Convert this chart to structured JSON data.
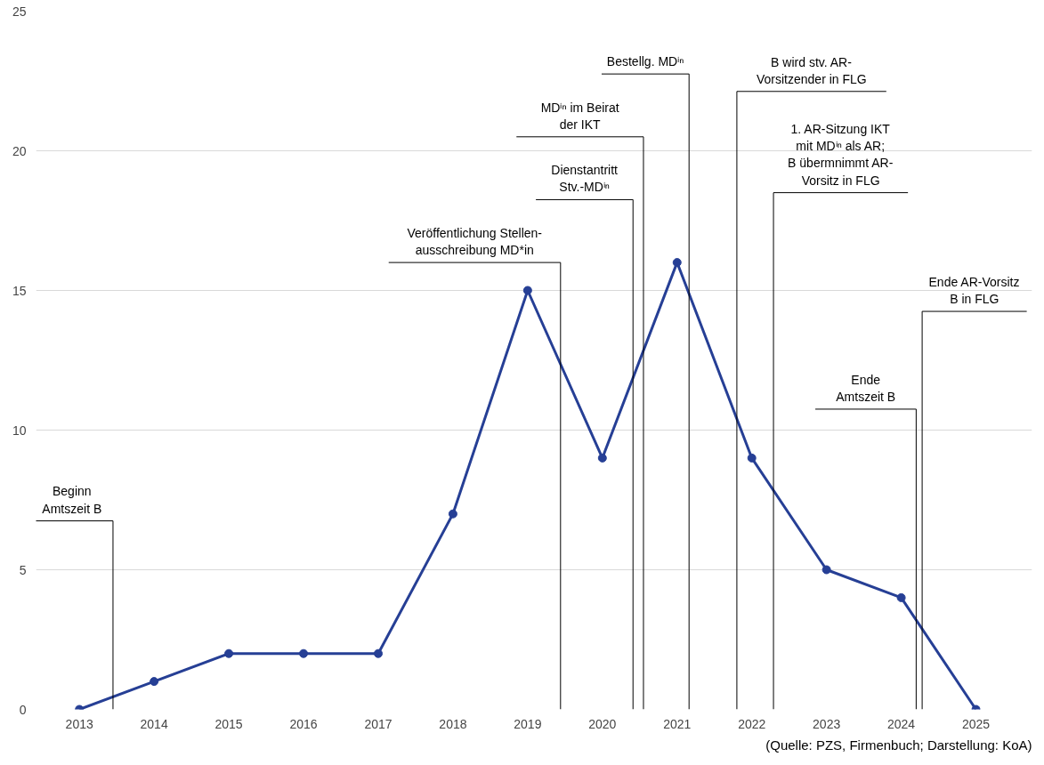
{
  "chart_data": {
    "type": "line",
    "x": [
      2013,
      2014,
      2015,
      2016,
      2017,
      2018,
      2019,
      2020,
      2021,
      2022,
      2023,
      2024,
      2025
    ],
    "values": [
      0,
      1,
      2,
      2,
      2,
      7,
      15,
      9,
      16,
      9,
      5,
      4,
      0
    ],
    "color": "#263f95",
    "marker": "circle",
    "line_style": "solid",
    "grid": "y",
    "xlim": [
      2012.42,
      2025.75
    ],
    "xticks": [
      2013,
      2014,
      2015,
      2016,
      2017,
      2018,
      2019,
      2020,
      2021,
      2022,
      2023,
      2024,
      2025
    ],
    "ylim": [
      0,
      25
    ],
    "yticks": [
      0,
      5,
      10,
      15,
      20,
      25
    ],
    "ref_lines": [
      {
        "axis": "x",
        "value": 2013.45,
        "label": "Beginn\nAmtszeit B",
        "color": "#000000"
      },
      {
        "axis": "x",
        "value": 2019.44,
        "label": "Veröffentlichung Stellen-\nausschreibung MD*in",
        "color": "#000000"
      },
      {
        "axis": "x",
        "value": 2020.41,
        "label": "Dienstantritt\nStv.-MDⁱⁿ",
        "color": "#000000"
      },
      {
        "axis": "x",
        "value": 2020.55,
        "label": "MDⁱⁿ im Beirat\nder IKT",
        "color": "#000000"
      },
      {
        "axis": "x",
        "value": 2021.16,
        "label": "Bestellg. MDⁱⁿ",
        "color": "#000000"
      },
      {
        "axis": "x",
        "value": 2021.8,
        "label": "B wird stv. AR-\nVorsitzender in FLG",
        "color": "#000000"
      },
      {
        "axis": "x",
        "value": 2022.29,
        "label": "1. AR-Sitzung IKT\nmit MDⁱⁿ als AR;\nB übermnimmt AR-\nVorsitz in FLG",
        "color": "#000000"
      },
      {
        "axis": "x",
        "value": 2024.2,
        "label": "Ende\nAmtszeit B",
        "color": "#000000"
      },
      {
        "axis": "x",
        "value": 2024.28,
        "label": "Ende AR-Vorsitz\nB in FLG",
        "color": "#000000"
      }
    ],
    "annotations": [
      "(Quelle: PZS, Firmenbuch; Darstellung: KoA)"
    ]
  }
}
